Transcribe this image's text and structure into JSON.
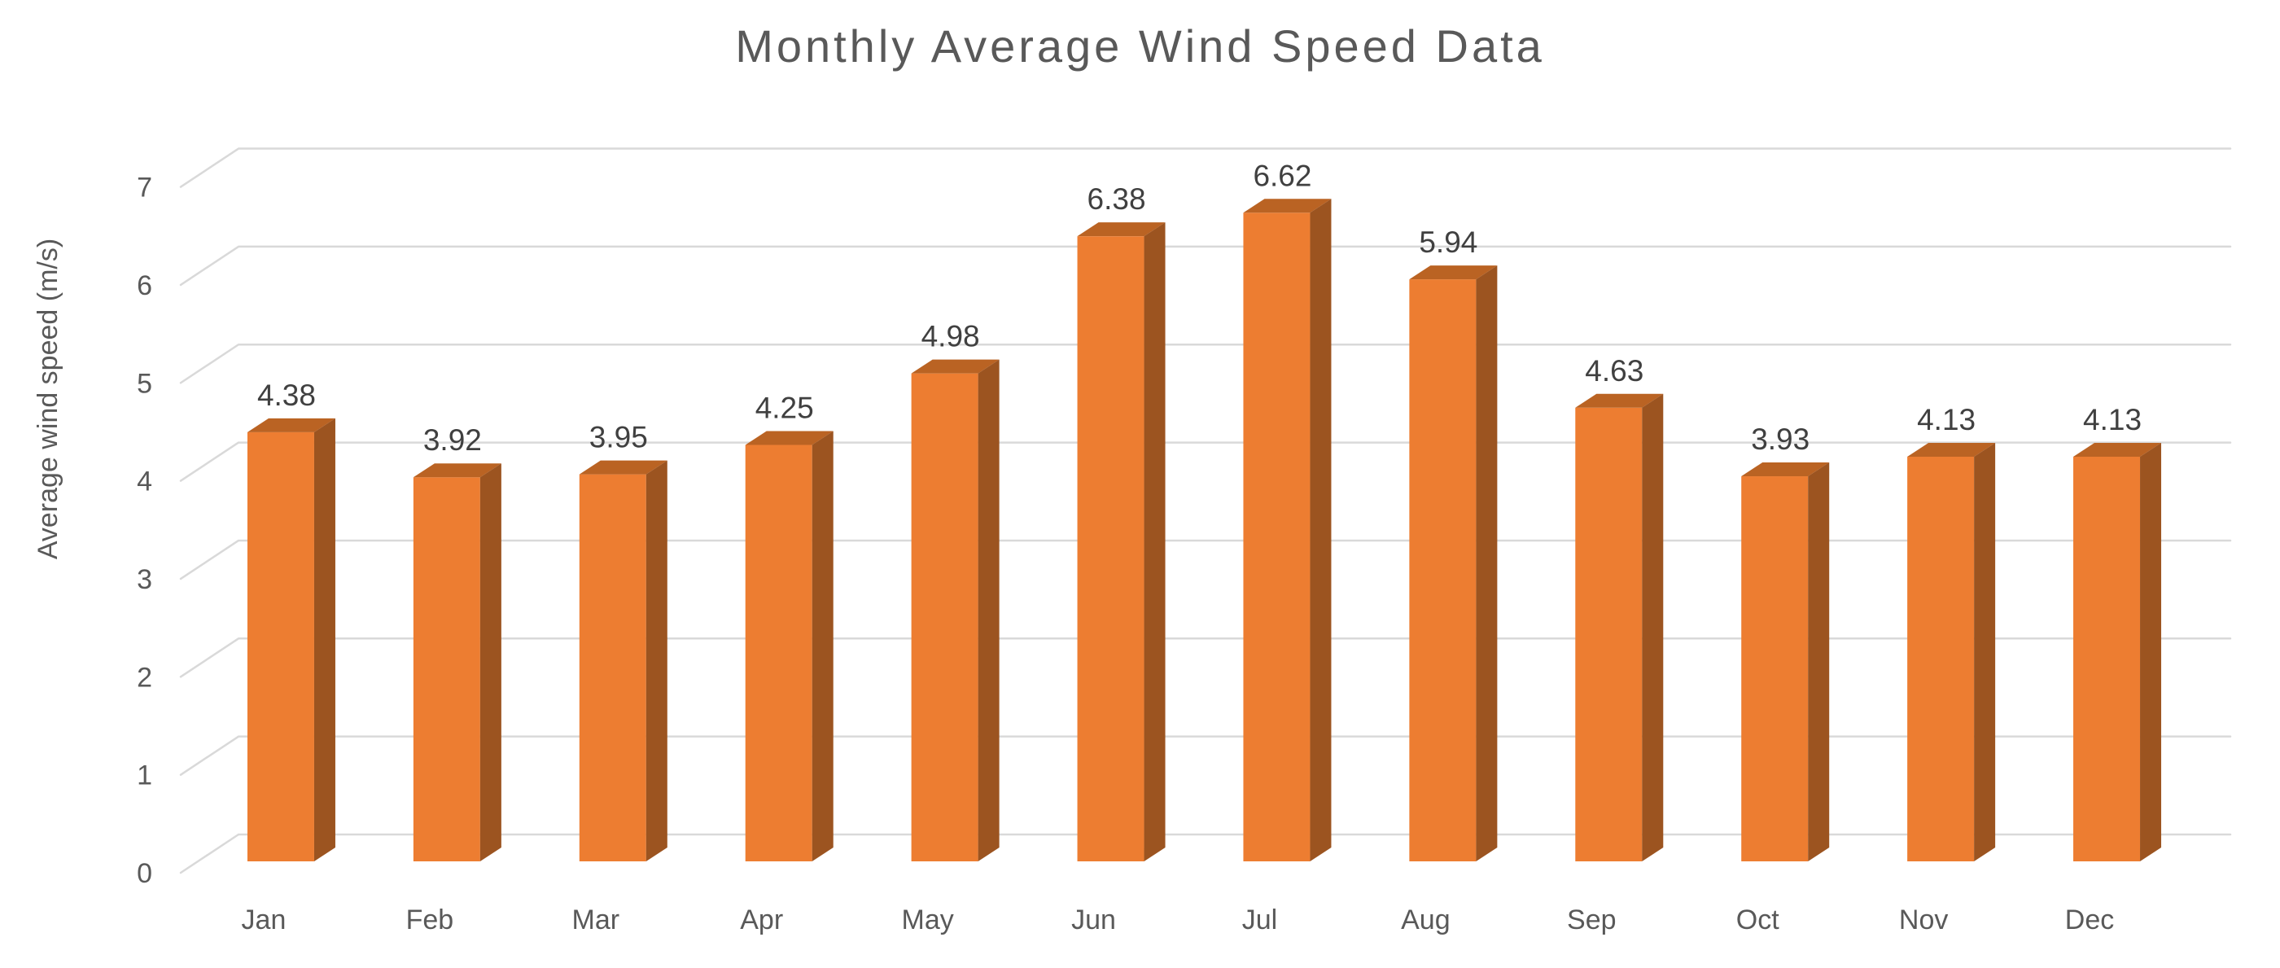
{
  "chart_data": {
    "type": "bar",
    "style": "3d-clustered-column",
    "title": "Monthly Average Wind Speed Data",
    "xlabel": "",
    "ylabel": "Average wind speed (m/s)",
    "categories": [
      "Jan",
      "Feb",
      "Mar",
      "Apr",
      "May",
      "Jun",
      "Jul",
      "Aug",
      "Sep",
      "Oct",
      "Nov",
      "Dec"
    ],
    "values": [
      4.38,
      3.92,
      3.95,
      4.25,
      4.98,
      6.38,
      6.62,
      5.94,
      4.63,
      3.93,
      4.13,
      4.13
    ],
    "data_labels": [
      "4.38",
      "3.92",
      "3.95",
      "4.25",
      "4.98",
      "6.38",
      "6.62",
      "5.94",
      "4.63",
      "3.93",
      "4.13",
      "4.13"
    ],
    "ylim": [
      0,
      7
    ],
    "ytick_step": 1,
    "yticks": [
      "0",
      "1",
      "2",
      "3",
      "4",
      "5",
      "6",
      "7"
    ],
    "grid": true,
    "legend": "none",
    "colors": {
      "background": "#FFFFFF",
      "bar_front": "#ED7D31",
      "bar_top": "#BA6323",
      "bar_side": "#9C5420",
      "gridline": "#D9D9D9",
      "axis_text": "#595959",
      "data_label": "#404040",
      "title": "#595959"
    }
  }
}
